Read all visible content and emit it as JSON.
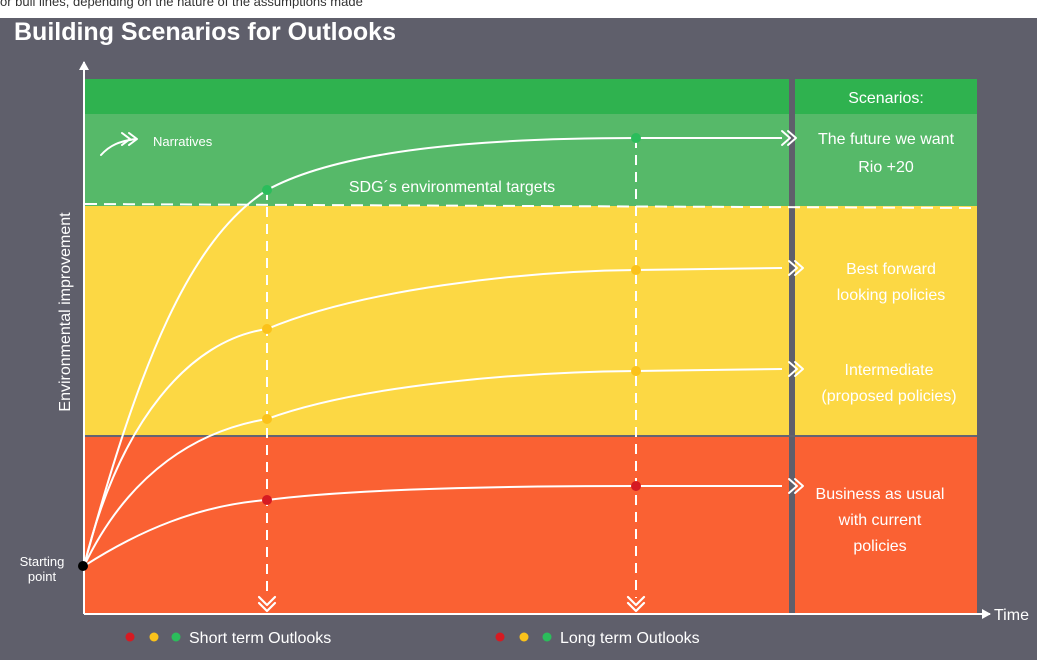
{
  "cropped_top_text": "or bull lines, depending on the nature of the assumptions made",
  "title": "Building Scenarios for Outlooks",
  "axes": {
    "y_label": "Environmental improvement",
    "x_label": "Time"
  },
  "starting_point": [
    "Starting",
    "point"
  ],
  "narratives_label": "Narratives",
  "target_label": "SDG´s environmental targets",
  "scenarios_header": "Scenarios:",
  "scenarios": [
    {
      "lines": [
        "The future we want",
        "Rio +20"
      ],
      "band": "green"
    },
    {
      "lines": [
        "Best forward",
        "looking policies"
      ],
      "band": "yellow"
    },
    {
      "lines": [
        "Intermediate",
        "(proposed policies)"
      ],
      "band": "yellow"
    },
    {
      "lines": [
        "Business as usual",
        "with current",
        "policies"
      ],
      "band": "red"
    }
  ],
  "legend": [
    {
      "label": "Short term Outlooks",
      "dots": [
        "red",
        "yellow",
        "green"
      ]
    },
    {
      "label": "Long term Outlooks",
      "dots": [
        "red",
        "yellow",
        "green"
      ]
    }
  ],
  "colors": {
    "background": "#5f5f6b",
    "green_header": "#2fb24f",
    "green_band": "#56b969",
    "yellow_band": "#fcd844",
    "red_band": "#fa6133",
    "divider": "#646472",
    "dot_green": "#2bbd5b",
    "dot_yellow": "#fbc21a",
    "dot_red": "#d61a22",
    "curve": "#ffffff"
  }
}
